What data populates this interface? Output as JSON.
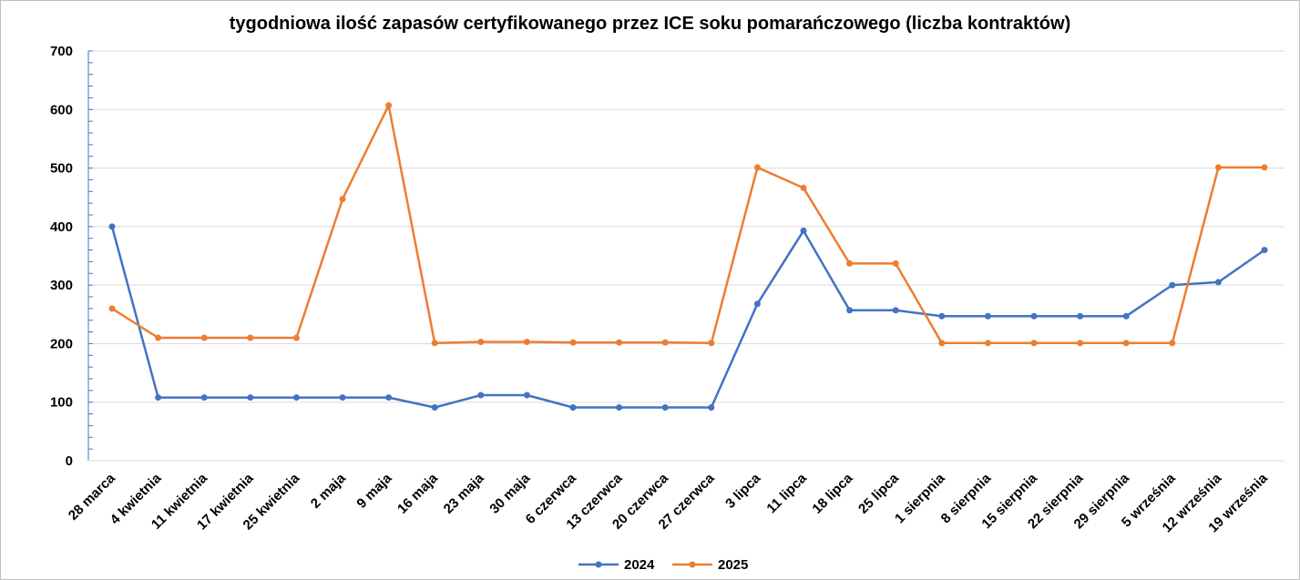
{
  "chart_data": {
    "type": "line",
    "title": "tygodniowa ilość zapasów certyfikowanego przez ICE soku pomarańczowego (liczba kontraktów)",
    "xlabel": "",
    "ylabel": "",
    "ylim": [
      0,
      700
    ],
    "yticks": [
      0,
      100,
      200,
      300,
      400,
      500,
      600,
      700
    ],
    "grid": true,
    "legend_position": "bottom",
    "categories": [
      "28 marca",
      "4 kwietnia",
      "11 kwietnia",
      "17 kwietnia",
      "25 kwietnia",
      "2 maja",
      "9 maja",
      "16 maja",
      "23 maja",
      "30 maja",
      "6 czerwca",
      "13 czerwca",
      "20 czerwca",
      "27 czerwca",
      "3 lipca",
      "11 lipca",
      "18 lipca",
      "25 lipca",
      "1 sierpnia",
      "8 sierpnia",
      "15 sierpnia",
      "22 sierpnia",
      "29 sierpnia",
      "5 września",
      "12 września",
      "19 września"
    ],
    "series": [
      {
        "name": "2024",
        "color": "#4472C4",
        "values": [
          400,
          108,
          108,
          108,
          108,
          108,
          108,
          91,
          112,
          112,
          91,
          91,
          91,
          91,
          268,
          393,
          257,
          257,
          247,
          247,
          247,
          247,
          247,
          300,
          305,
          360
        ]
      },
      {
        "name": "2025",
        "color": "#ED7D31",
        "values": [
          260,
          210,
          210,
          210,
          210,
          447,
          607,
          201,
          203,
          203,
          202,
          202,
          202,
          201,
          501,
          466,
          337,
          337,
          201,
          201,
          201,
          201,
          201,
          201,
          501,
          501
        ]
      }
    ]
  }
}
